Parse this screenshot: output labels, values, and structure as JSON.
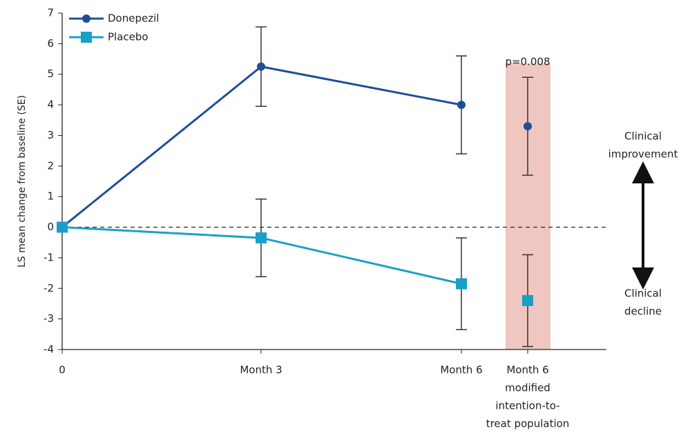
{
  "chart_data": {
    "type": "line",
    "y_label": "LS mean change from baseline (SE)",
    "categories": [
      "0",
      "Month 3",
      "Month 6",
      [
        "Month 6",
        "modified",
        "intention-to-",
        "treat population"
      ]
    ],
    "series": [
      {
        "name": "Donepezil",
        "color": "#1f4e96",
        "marker": "circle",
        "values": [
          0,
          5.25,
          4.0,
          3.3
        ],
        "errors": [
          null,
          1.3,
          1.6,
          1.6
        ]
      },
      {
        "name": "Placebo",
        "color": "#1aa0c8",
        "marker": "square",
        "values": [
          0,
          -0.35,
          -1.85,
          -2.4
        ],
        "errors": [
          null,
          1.27,
          1.5,
          1.5
        ]
      }
    ],
    "ylim": [
      -4,
      7
    ],
    "yticks": [
      -4,
      -3,
      -2,
      -1,
      0,
      1,
      2,
      3,
      4,
      5,
      6,
      7
    ],
    "reference_line": 0,
    "annotations": {
      "p_value": "p=0.008",
      "improvement": [
        "Clinical",
        "improvement"
      ],
      "decline": [
        "Clinical",
        "decline"
      ]
    },
    "legend": "upper left"
  }
}
